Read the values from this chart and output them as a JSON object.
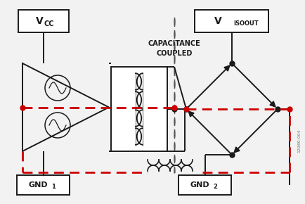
{
  "bg_color": "#f2f2f2",
  "lc": "#1a1a1a",
  "dc": "#cc0000",
  "fig_id": "12980-004",
  "cap_text_line1": "CAPACITANCE",
  "cap_text_line2": "COUPLED",
  "vcc": "V",
  "vcc_sub": "CC",
  "visoout": "V",
  "visoout_sub": "ISOOUT",
  "gnd1": "GND",
  "gnd1_sub": "1",
  "gnd2": "GND",
  "gnd2_sub": "2"
}
